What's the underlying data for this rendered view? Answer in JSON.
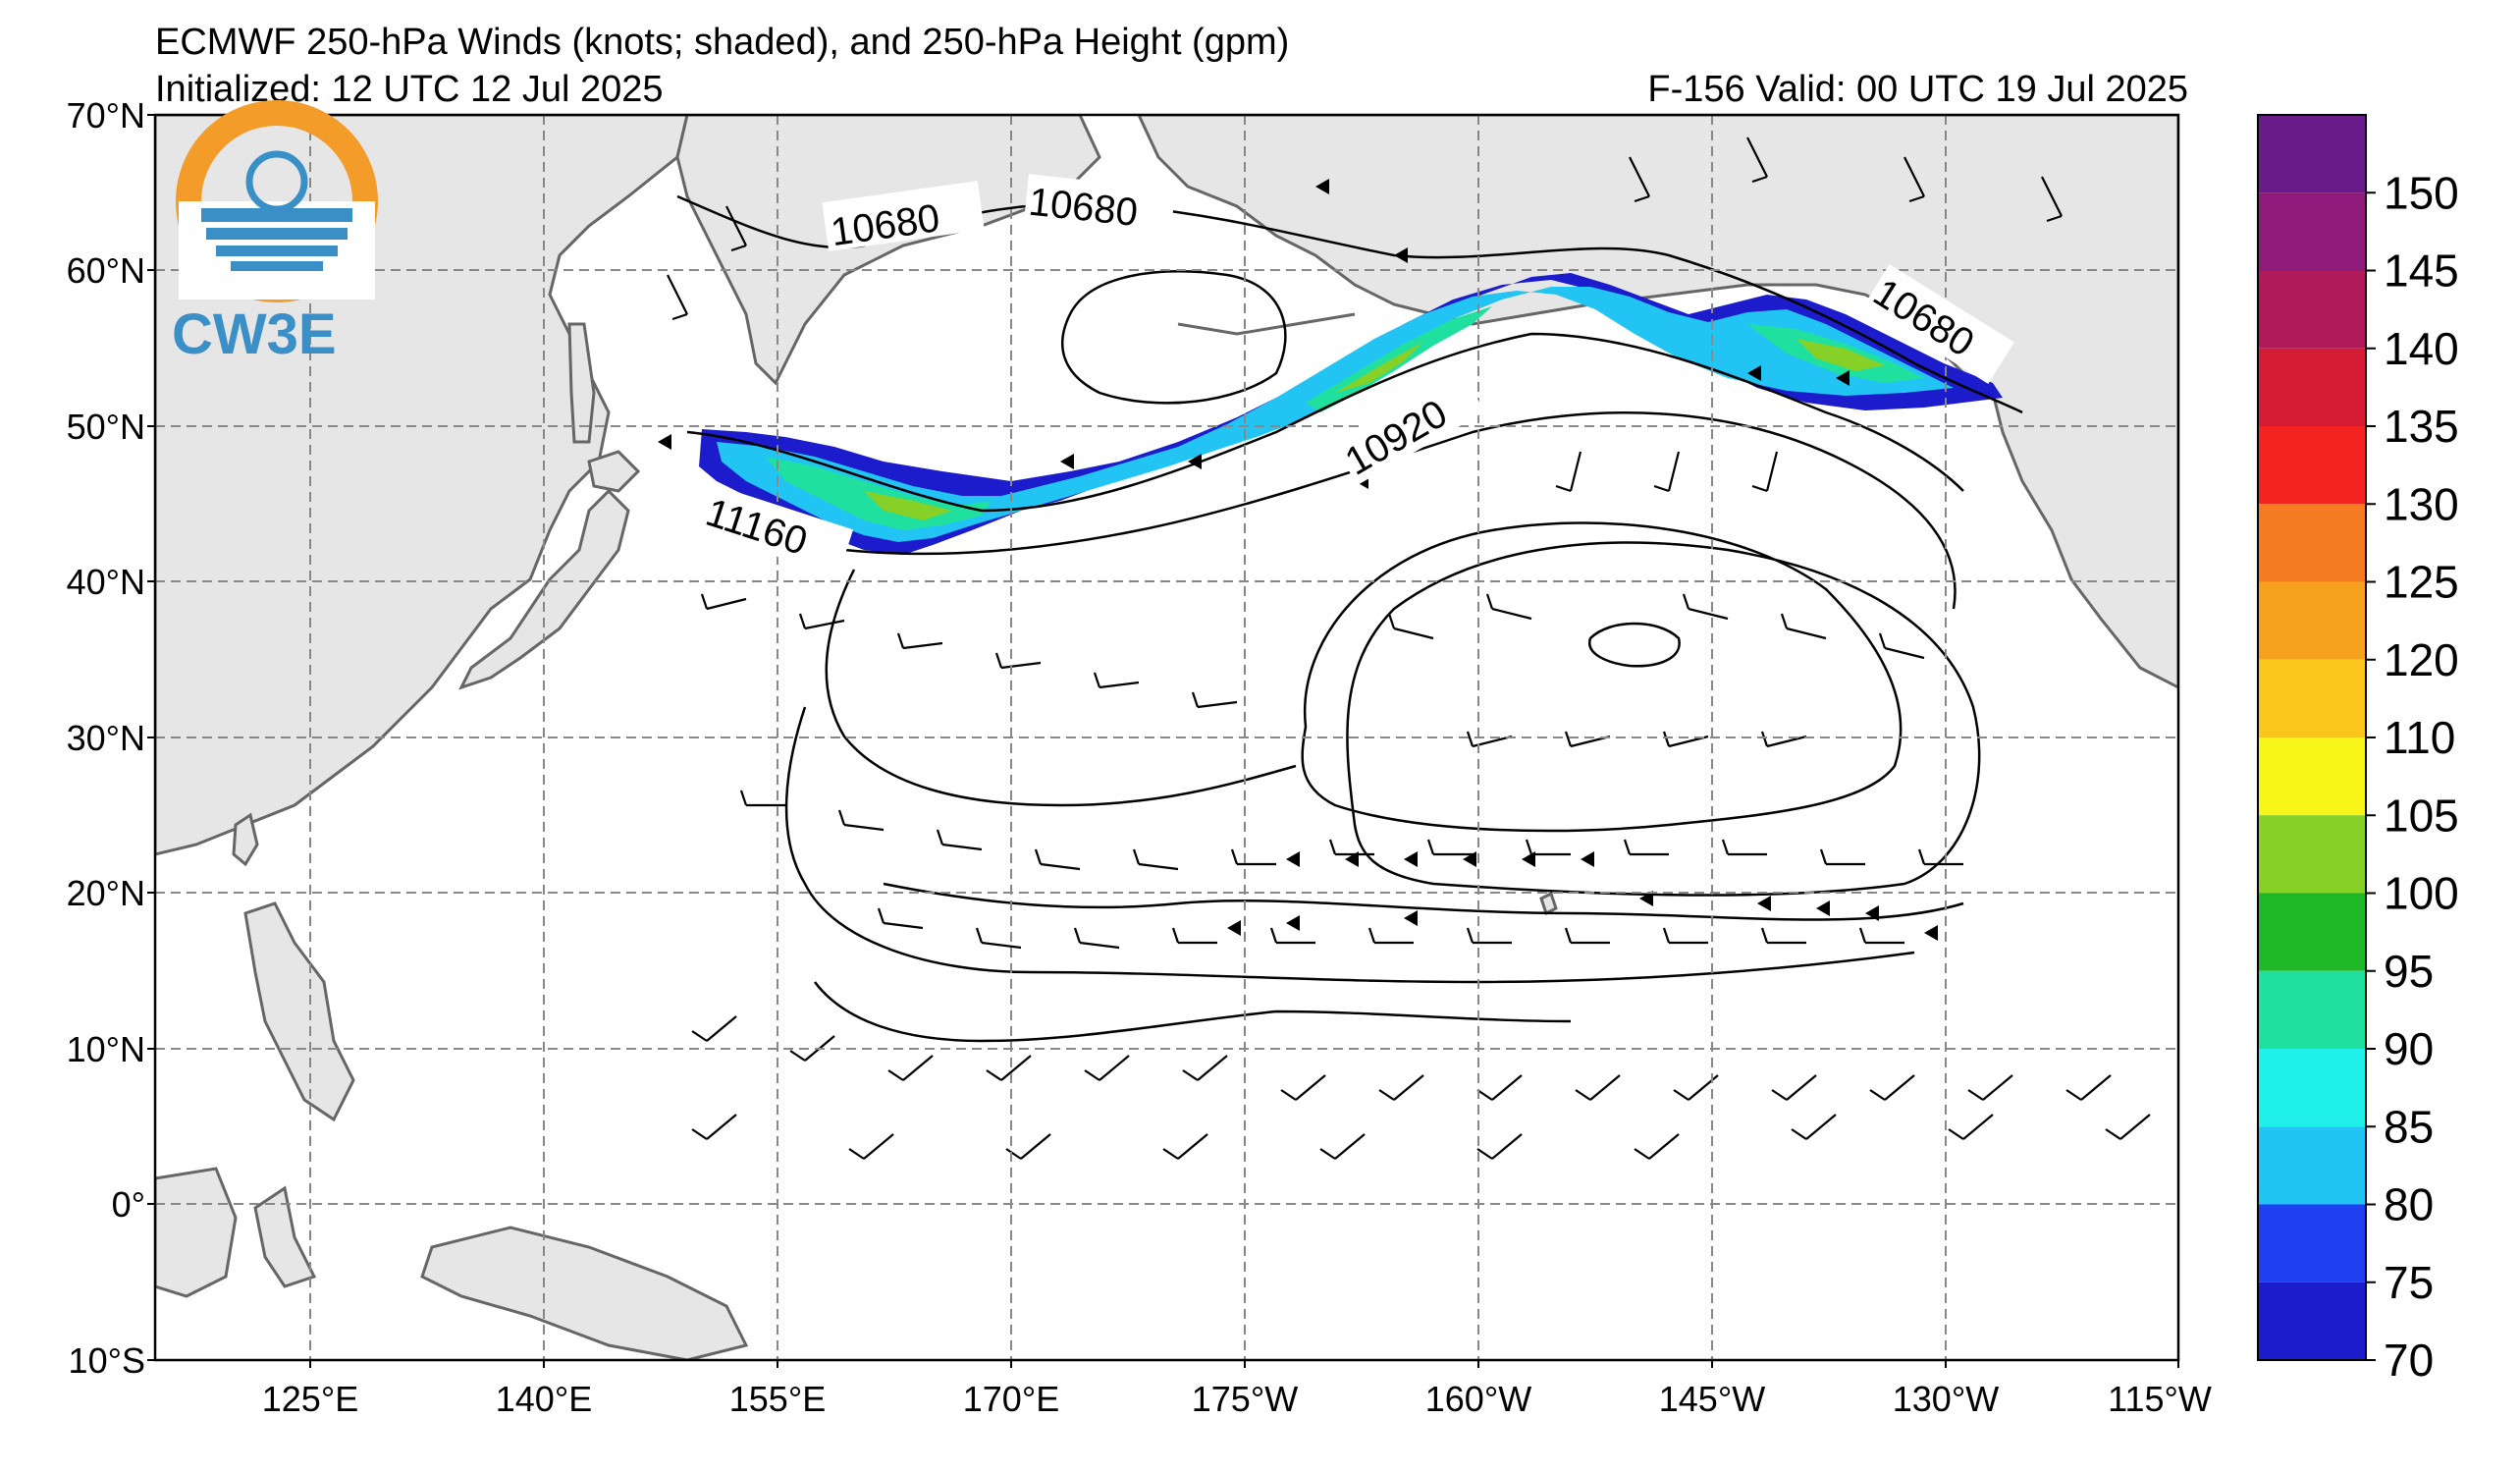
{
  "title": {
    "line1": "ECMWF 250-hPa Winds (knots; shaded), and 250-hPa Height (gpm)",
    "init": "Initialized: 12 UTC 12 Jul 2025",
    "valid": "F-156  Valid: 00 UTC 19 Jul 2025"
  },
  "logo": {
    "text": "CW3E",
    "colors": {
      "orange": "#f39c2a",
      "blue": "#3a8fc7"
    }
  },
  "lat_labels": [
    "70°N",
    "60°N",
    "50°N",
    "40°N",
    "30°N",
    "20°N",
    "10°N",
    "0°",
    "10°S"
  ],
  "lon_labels": [
    "125°E",
    "140°E",
    "155°E",
    "170°E",
    "175°W",
    "160°W",
    "145°W",
    "130°W",
    "115°W"
  ],
  "colorbar": {
    "labels": [
      "150",
      "145",
      "140",
      "135",
      "130",
      "125",
      "120",
      "110",
      "105",
      "100",
      "95",
      "90",
      "85",
      "80",
      "75",
      "70"
    ],
    "colors": [
      "#6a1b8a",
      "#8e1a7a",
      "#b01a5a",
      "#d51c34",
      "#f52222",
      "#f57a22",
      "#f7a21e",
      "#fbc61c",
      "#f8f518",
      "#86d027",
      "#20b825",
      "#20e0a0",
      "#20f0ea",
      "#22c4f4",
      "#1e40f0",
      "#1c1ccc"
    ]
  },
  "contour_labels": [
    "10680",
    "10680",
    "10680",
    "10920",
    "11160"
  ],
  "colors": {
    "land": "#e6e6e6",
    "coast": "#666666",
    "grid": "#888888",
    "contour": "#000000"
  }
}
